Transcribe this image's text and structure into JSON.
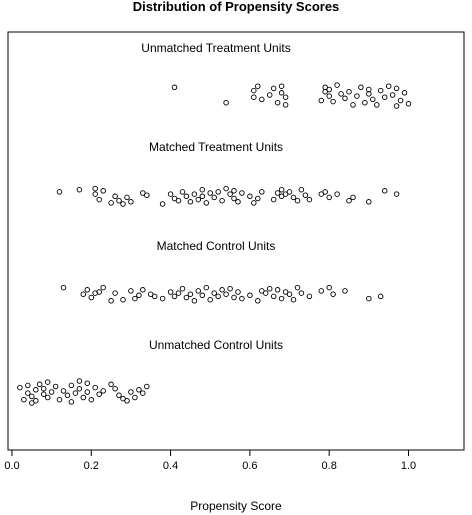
{
  "chart_data": {
    "type": "scatter",
    "title": "Distribution of Propensity Scores",
    "xlabel": "Propensity Score",
    "ylabel": "",
    "xlim": [
      -0.01,
      1.14
    ],
    "x_ticks": [
      0.0,
      0.2,
      0.4,
      0.6,
      0.8,
      1.0
    ],
    "x_tick_labels": [
      "0.0",
      "0.2",
      "0.4",
      "0.6",
      "0.8",
      "1.0"
    ],
    "grid": false,
    "groups": [
      {
        "name": "Unmatched Treatment Units",
        "x": [
          0.41,
          0.54,
          0.61,
          0.61,
          0.62,
          0.63,
          0.65,
          0.66,
          0.67,
          0.68,
          0.68,
          0.69,
          0.69,
          0.78,
          0.79,
          0.79,
          0.8,
          0.8,
          0.81,
          0.82,
          0.83,
          0.84,
          0.85,
          0.86,
          0.87,
          0.88,
          0.89,
          0.9,
          0.9,
          0.91,
          0.92,
          0.93,
          0.94,
          0.95,
          0.96,
          0.97,
          0.97,
          0.98,
          0.99,
          1.0
        ],
        "jitter": [
          0.15,
          0.85,
          0.6,
          0.3,
          0.1,
          0.7,
          0.5,
          0.2,
          0.85,
          0.4,
          0.1,
          0.6,
          0.95,
          0.75,
          0.35,
          0.15,
          0.55,
          0.25,
          0.8,
          0.05,
          0.45,
          0.65,
          0.35,
          0.95,
          0.55,
          0.15,
          0.85,
          0.25,
          0.45,
          0.7,
          0.95,
          0.3,
          0.6,
          0.1,
          0.5,
          1.0,
          0.2,
          0.75,
          0.4,
          0.9
        ]
      },
      {
        "name": "Matched Treatment Units",
        "x": [
          0.12,
          0.17,
          0.21,
          0.21,
          0.22,
          0.23,
          0.25,
          0.26,
          0.27,
          0.28,
          0.29,
          0.3,
          0.33,
          0.34,
          0.38,
          0.4,
          0.41,
          0.42,
          0.43,
          0.44,
          0.45,
          0.46,
          0.47,
          0.48,
          0.48,
          0.49,
          0.5,
          0.51,
          0.52,
          0.53,
          0.54,
          0.55,
          0.56,
          0.56,
          0.57,
          0.58,
          0.6,
          0.61,
          0.62,
          0.63,
          0.66,
          0.67,
          0.68,
          0.68,
          0.69,
          0.7,
          0.71,
          0.72,
          0.73,
          0.74,
          0.75,
          0.78,
          0.79,
          0.8,
          0.82,
          0.85,
          0.86,
          0.9,
          0.94,
          0.97
        ],
        "jitter": [
          0.45,
          0.35,
          0.55,
          0.3,
          0.8,
          0.4,
          0.95,
          0.65,
          0.85,
          1.0,
          0.7,
          0.9,
          0.5,
          0.6,
          1.0,
          0.55,
          0.75,
          0.85,
          0.45,
          0.65,
          0.9,
          0.55,
          0.8,
          0.35,
          0.65,
          0.95,
          0.5,
          0.7,
          0.45,
          0.85,
          0.3,
          0.55,
          0.4,
          0.75,
          0.9,
          0.5,
          0.65,
          0.95,
          0.75,
          0.45,
          0.8,
          0.5,
          0.35,
          0.65,
          0.55,
          0.45,
          0.7,
          0.85,
          0.35,
          0.6,
          0.8,
          0.55,
          0.45,
          0.7,
          0.55,
          0.85,
          0.7,
          0.9,
          0.4,
          0.55
        ]
      },
      {
        "name": "Matched Control Units",
        "x": [
          0.13,
          0.18,
          0.19,
          0.2,
          0.21,
          0.22,
          0.23,
          0.25,
          0.26,
          0.28,
          0.3,
          0.31,
          0.32,
          0.33,
          0.35,
          0.36,
          0.38,
          0.4,
          0.41,
          0.42,
          0.43,
          0.44,
          0.45,
          0.46,
          0.47,
          0.48,
          0.49,
          0.5,
          0.51,
          0.52,
          0.53,
          0.54,
          0.55,
          0.56,
          0.57,
          0.58,
          0.6,
          0.62,
          0.63,
          0.64,
          0.65,
          0.66,
          0.67,
          0.68,
          0.69,
          0.7,
          0.71,
          0.72,
          0.73,
          0.75,
          0.78,
          0.8,
          0.81,
          0.84,
          0.9,
          0.93
        ],
        "jitter": [
          0.3,
          0.6,
          0.4,
          0.75,
          0.55,
          0.5,
          0.3,
          0.9,
          0.55,
          0.85,
          0.45,
          0.8,
          0.65,
          0.4,
          0.6,
          0.7,
          0.8,
          0.5,
          0.7,
          0.55,
          0.35,
          0.75,
          0.6,
          0.9,
          0.45,
          0.65,
          0.3,
          0.85,
          0.55,
          0.7,
          0.4,
          0.6,
          0.35,
          0.75,
          0.5,
          0.8,
          0.65,
          0.9,
          0.45,
          0.55,
          0.35,
          0.7,
          0.4,
          0.8,
          0.5,
          0.6,
          0.85,
          0.3,
          0.55,
          0.7,
          0.45,
          0.3,
          0.6,
          0.45,
          0.8,
          0.7
        ]
      },
      {
        "name": "Unmatched Control Units",
        "x": [
          0.02,
          0.03,
          0.04,
          0.04,
          0.05,
          0.06,
          0.06,
          0.07,
          0.08,
          0.08,
          0.09,
          0.1,
          0.11,
          0.12,
          0.13,
          0.14,
          0.15,
          0.15,
          0.16,
          0.17,
          0.18,
          0.19,
          0.19,
          0.2,
          0.21,
          0.22,
          0.23,
          0.25,
          0.26,
          0.27,
          0.29,
          0.3,
          0.31,
          0.32,
          0.33,
          0.34,
          0.05,
          0.09,
          0.17,
          0.28
        ],
        "jitter": [
          0.3,
          0.85,
          0.55,
          0.2,
          0.7,
          0.4,
          0.9,
          0.15,
          0.6,
          0.35,
          0.75,
          0.5,
          0.25,
          0.85,
          0.45,
          0.65,
          0.2,
          0.95,
          0.55,
          0.35,
          0.75,
          0.1,
          0.5,
          0.85,
          0.3,
          0.6,
          0.45,
          0.15,
          0.35,
          0.65,
          0.9,
          0.5,
          0.75,
          0.4,
          0.55,
          0.25,
          1.0,
          0.05,
          0.0,
          0.8
        ]
      }
    ]
  }
}
